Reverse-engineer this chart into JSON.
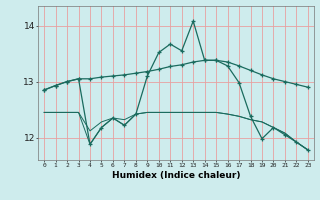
{
  "xlabel": "Humidex (Indice chaleur)",
  "bg_color": "#ceeced",
  "grid_color": "#e8a0a0",
  "line_color": "#1a6b5e",
  "x_values": [
    0,
    1,
    2,
    3,
    4,
    5,
    6,
    7,
    8,
    9,
    10,
    11,
    12,
    13,
    14,
    15,
    16,
    17,
    18,
    19,
    20,
    21,
    22,
    23
  ],
  "line1": [
    12.85,
    12.93,
    13.0,
    13.05,
    13.05,
    13.08,
    13.1,
    13.12,
    13.15,
    13.18,
    13.22,
    13.27,
    13.3,
    13.35,
    13.38,
    13.38,
    13.35,
    13.28,
    13.2,
    13.12,
    13.05,
    13.0,
    12.95,
    12.9
  ],
  "line2": [
    12.85,
    12.93,
    13.0,
    13.05,
    11.88,
    12.18,
    12.35,
    12.22,
    12.42,
    13.1,
    13.52,
    13.67,
    13.55,
    14.08,
    13.38,
    13.38,
    13.28,
    12.98,
    12.38,
    11.98,
    12.18,
    12.05,
    11.92,
    11.78
  ],
  "line3": [
    12.45,
    12.45,
    12.45,
    12.45,
    12.12,
    12.28,
    12.35,
    12.32,
    12.42,
    12.45,
    12.45,
    12.45,
    12.45,
    12.45,
    12.45,
    12.45,
    12.42,
    12.38,
    12.32,
    12.28,
    12.18,
    12.08,
    11.92,
    11.78
  ],
  "line4": [
    12.45,
    12.45,
    12.45,
    12.45,
    11.88,
    12.18,
    12.35,
    12.22,
    12.42,
    12.45,
    12.45,
    12.45,
    12.45,
    12.45,
    12.45,
    12.45,
    12.42,
    12.38,
    12.32,
    12.28,
    12.18,
    12.08,
    11.92,
    11.78
  ],
  "ylim": [
    11.6,
    14.35
  ],
  "yticks": [
    12,
    13,
    14
  ],
  "xlim": [
    -0.5,
    23.5
  ],
  "xticks": [
    0,
    1,
    2,
    3,
    4,
    5,
    6,
    7,
    8,
    9,
    10,
    11,
    12,
    13,
    14,
    15,
    16,
    17,
    18,
    19,
    20,
    21,
    22,
    23
  ]
}
